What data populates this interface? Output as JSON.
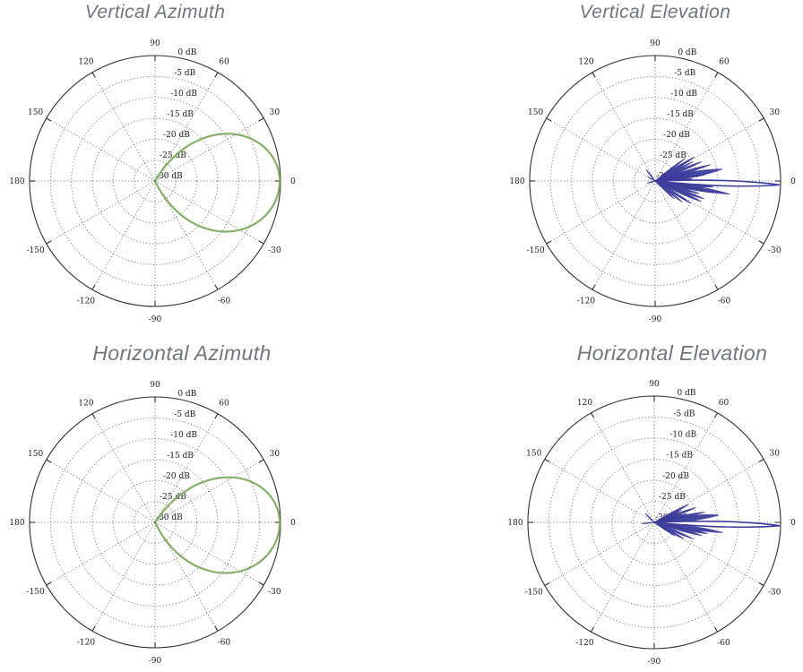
{
  "page": {
    "background": "#ffffff"
  },
  "chart_data": [
    {
      "type": "polar",
      "title": "Vertical Azimuth",
      "color": "#79a95a",
      "radial_axis": {
        "unit": "dB",
        "range": [
          -30,
          0
        ],
        "ticks_db": [
          0,
          -5,
          -10,
          -15,
          -20,
          -25,
          -30
        ],
        "tick_labels": [
          "0 dB",
          "-5 dB",
          "-10 dB",
          "-15 dB",
          "-20 dB",
          "-25 dB",
          "-30 dB"
        ]
      },
      "angle_ticks_deg": [
        0,
        30,
        60,
        90,
        120,
        150,
        180,
        -150,
        -120,
        -90,
        -60,
        -30
      ],
      "grid": {
        "dotted_rings": true,
        "spokes_every_deg": 30
      },
      "pattern": {
        "kind": "single_lobe",
        "peak_angle_deg": 0,
        "peak_db": -0.2,
        "null_up_deg": 60,
        "null_down_deg": 65
      }
    },
    {
      "type": "polar",
      "title": "Vertical Elevation",
      "color": "#3c3d9b",
      "radial_axis": {
        "unit": "dB",
        "range": [
          -30,
          0
        ],
        "ticks_db": [
          0,
          -5,
          -10,
          -15,
          -20,
          -25,
          -30
        ],
        "tick_labels": [
          "0 dB",
          "-5 dB",
          "-10 dB",
          "-15 dB",
          "-20 dB",
          "-25 dB",
          "-30 dB"
        ]
      },
      "angle_ticks_deg": [
        0,
        30,
        60,
        90,
        120,
        150,
        180,
        -150,
        -120,
        -90,
        -60,
        -30
      ],
      "grid": {
        "dotted_rings": true,
        "spokes_every_deg": 30
      },
      "pattern": {
        "kind": "multi_lobe",
        "main": {
          "angle_deg": -1.8,
          "peak_db": -0.2,
          "half_width_deg": 2.3
        },
        "side_lobes": [
          [
            37,
            -21,
            2
          ],
          [
            31.5,
            -19,
            2.2
          ],
          [
            27,
            -20,
            2
          ],
          [
            22.5,
            -18,
            2.2
          ],
          [
            16.5,
            -16.2,
            2.2
          ],
          [
            13,
            -20,
            2
          ],
          [
            10,
            -13.7,
            4
          ],
          [
            7,
            -18,
            2
          ],
          [
            3.5,
            -21,
            2
          ],
          [
            -4,
            -19,
            2
          ],
          [
            -6,
            -16,
            2
          ],
          [
            -10,
            -11.9,
            2.6
          ],
          [
            -11.5,
            -15.8,
            2.2
          ],
          [
            -16,
            -19,
            2
          ],
          [
            -20,
            -17.5,
            2.2
          ],
          [
            -24,
            -17.9,
            2.4
          ],
          [
            -32,
            -19.9,
            2.2
          ],
          [
            -38,
            -21.7,
            2
          ],
          [
            -43,
            -23.7,
            1.8
          ],
          [
            128,
            -26.5,
            3
          ],
          [
            150,
            -28,
            3
          ],
          [
            195,
            -28,
            3
          ]
        ]
      }
    },
    {
      "type": "polar",
      "title": "Horizontal Azimuth",
      "color": "#79a95a",
      "radial_axis": {
        "unit": "dB",
        "range": [
          -30,
          0
        ],
        "ticks_db": [
          0,
          -5,
          -10,
          -15,
          -20,
          -25,
          -30
        ],
        "tick_labels": [
          "0 dB",
          "-5 dB",
          "-10 dB",
          "-15 dB",
          "-20 dB",
          "-25 dB",
          "-30 dB"
        ]
      },
      "angle_ticks_deg": [
        0,
        30,
        60,
        90,
        120,
        150,
        180,
        -150,
        -120,
        -90,
        -60,
        -30
      ],
      "grid": {
        "dotted_rings": true,
        "spokes_every_deg": 30
      },
      "pattern": {
        "kind": "single_lobe",
        "peak_angle_deg": 0,
        "peak_db": -0.2,
        "null_up_deg": 57,
        "null_down_deg": 65
      }
    },
    {
      "type": "polar",
      "title": "Horizontal Elevation",
      "color": "#3c3d9b",
      "radial_axis": {
        "unit": "dB",
        "range": [
          -30,
          0
        ],
        "ticks_db": [
          0,
          -5,
          -10,
          -15,
          -20,
          -25,
          -30
        ],
        "tick_labels": [
          "0 dB",
          "-5 dB",
          "-10 dB",
          "-15 dB",
          "-20 dB",
          "-25 dB",
          "-30 dB"
        ]
      },
      "angle_ticks_deg": [
        0,
        30,
        60,
        90,
        120,
        150,
        180,
        -150,
        -120,
        -90,
        -60,
        -30
      ],
      "grid": {
        "dotted_rings": true,
        "spokes_every_deg": 30
      },
      "pattern": {
        "kind": "multi_lobe",
        "main": {
          "angle_deg": -1.5,
          "peak_db": -0.2,
          "half_width_deg": 2.3
        },
        "side_lobes": [
          [
            27.5,
            -20.8,
            2.2
          ],
          [
            24,
            -23,
            2
          ],
          [
            19.5,
            -19.5,
            2.2
          ],
          [
            15,
            -22,
            2
          ],
          [
            11.5,
            -17.7,
            2.4
          ],
          [
            6.5,
            -14.6,
            4
          ],
          [
            16.5,
            -26.3,
            2
          ],
          [
            3,
            -22,
            2
          ],
          [
            -3,
            -20,
            2
          ],
          [
            -8.5,
            -13.5,
            2.6
          ],
          [
            -12,
            -17,
            2.2
          ],
          [
            -15.5,
            -18.2,
            2.4
          ],
          [
            -23,
            -20,
            2.2
          ],
          [
            -29,
            -21.9,
            2.2
          ],
          [
            -33,
            -24.1,
            2
          ],
          [
            135,
            -27,
            3
          ],
          [
            186,
            -27,
            3
          ]
        ]
      }
    }
  ]
}
